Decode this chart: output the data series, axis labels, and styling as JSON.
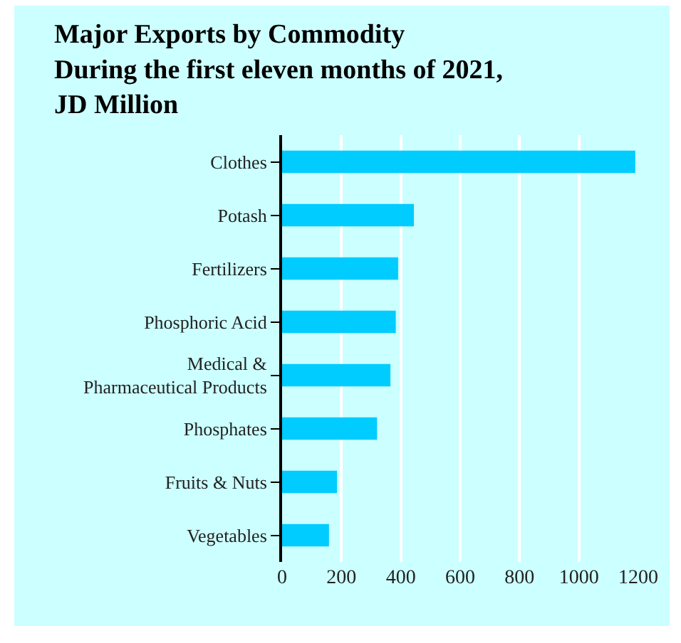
{
  "chart_data": {
    "type": "bar",
    "orientation": "horizontal",
    "title": "Major Exports by Commodity\nDuring the first eleven months of 2021,\nJD Million",
    "categories": [
      "Clothes",
      "Potash",
      "Fertilizers",
      "Phosphoric Acid",
      "Medical & Pharmaceutical Products",
      "Phosphates",
      "Fruits & Nuts",
      "Vegetables"
    ],
    "values": [
      1190,
      444,
      391,
      383,
      365,
      320,
      185,
      158
    ],
    "color": "#00ccff",
    "xlim": [
      0,
      1200
    ],
    "xticks": [
      0,
      200,
      400,
      600,
      800,
      1000,
      1200
    ],
    "grid": "x",
    "legend": false
  }
}
